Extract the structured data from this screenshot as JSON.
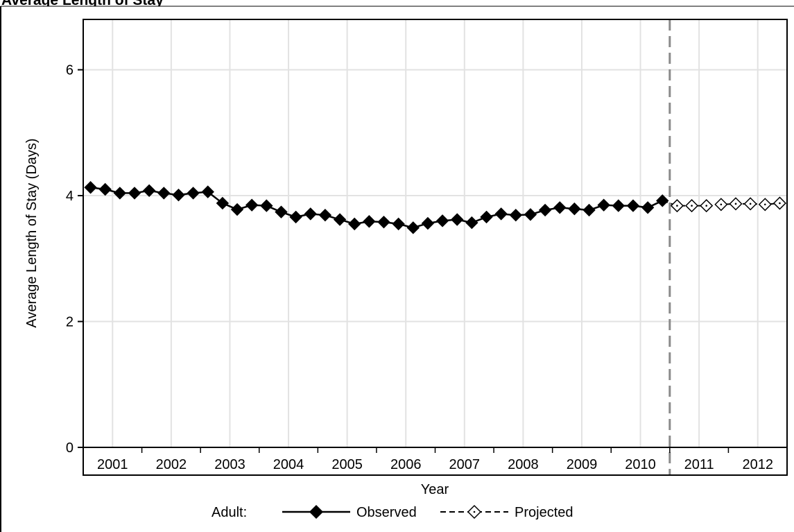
{
  "chart_data": {
    "type": "line",
    "title": "Average Length of Stay",
    "xlabel": "Year",
    "ylabel": "Average Length of Stay (Days)",
    "ylim": [
      0,
      6.8
    ],
    "yticks": [
      0,
      2,
      4,
      6
    ],
    "grid": true,
    "categories": [
      "2001",
      "2002",
      "2003",
      "2004",
      "2005",
      "2006",
      "2007",
      "2008",
      "2009",
      "2010",
      "2011",
      "2012"
    ],
    "projection_start": "2010 Q4",
    "legend": {
      "position": "bottom",
      "group_label": "Adult:",
      "entries": [
        "Observed",
        "Projected"
      ]
    },
    "series": [
      {
        "name": "Observed",
        "marker": "filled-diamond",
        "line": "solid",
        "color": "#000000",
        "x": [
          "2001 Q1",
          "2001 Q2",
          "2001 Q3",
          "2001 Q4",
          "2002 Q1",
          "2002 Q2",
          "2002 Q3",
          "2002 Q4",
          "2003 Q1",
          "2003 Q2",
          "2003 Q3",
          "2003 Q4",
          "2004 Q1",
          "2004 Q2",
          "2004 Q3",
          "2004 Q4",
          "2005 Q1",
          "2005 Q2",
          "2005 Q3",
          "2005 Q4",
          "2006 Q1",
          "2006 Q2",
          "2006 Q3",
          "2006 Q4",
          "2007 Q1",
          "2007 Q2",
          "2007 Q3",
          "2007 Q4",
          "2008 Q1",
          "2008 Q2",
          "2008 Q3",
          "2008 Q4",
          "2009 Q1",
          "2009 Q2",
          "2009 Q3",
          "2009 Q4",
          "2010 Q1",
          "2010 Q2",
          "2010 Q3",
          "2010 Q4"
        ],
        "values": [
          4.13,
          4.1,
          4.04,
          4.04,
          4.08,
          4.04,
          4.01,
          4.04,
          4.06,
          3.88,
          3.78,
          3.85,
          3.84,
          3.74,
          3.66,
          3.71,
          3.69,
          3.62,
          3.55,
          3.59,
          3.58,
          3.55,
          3.49,
          3.56,
          3.6,
          3.62,
          3.57,
          3.66,
          3.71,
          3.69,
          3.7,
          3.77,
          3.81,
          3.79,
          3.77,
          3.85,
          3.84,
          3.84,
          3.81,
          3.92
        ]
      },
      {
        "name": "Projected",
        "marker": "open-diamond",
        "line": "dashed",
        "color": "#000000",
        "x": [
          "2011 Q1",
          "2011 Q2",
          "2011 Q3",
          "2011 Q4",
          "2012 Q1",
          "2012 Q2",
          "2012 Q3",
          "2012 Q4"
        ],
        "values": [
          3.84,
          3.84,
          3.84,
          3.86,
          3.87,
          3.87,
          3.86,
          3.88
        ]
      }
    ]
  }
}
